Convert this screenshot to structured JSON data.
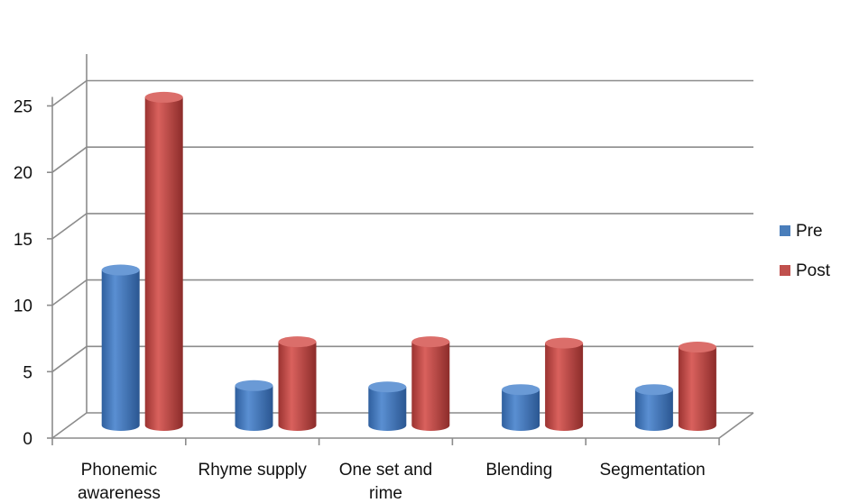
{
  "chart_data": {
    "type": "bar",
    "categories": [
      [
        "Phonemic",
        "awareness"
      ],
      [
        "Rhyme supply"
      ],
      [
        "One set and",
        "rime"
      ],
      [
        "Blending"
      ],
      [
        "Segmentation"
      ]
    ],
    "series": [
      {
        "name": "Pre",
        "color": "#4a7ebb",
        "values": [
          11.7,
          3.0,
          2.9,
          2.7,
          2.7
        ]
      },
      {
        "name": "Post",
        "color": "#c0504d",
        "values": [
          24.7,
          6.3,
          6.3,
          6.2,
          5.9
        ]
      }
    ],
    "y_ticks": [
      "0",
      "5",
      "10",
      "15",
      "20",
      "25"
    ],
    "ylim": [
      0,
      25
    ],
    "grid": true,
    "legend_position": "right",
    "three_d": true
  }
}
